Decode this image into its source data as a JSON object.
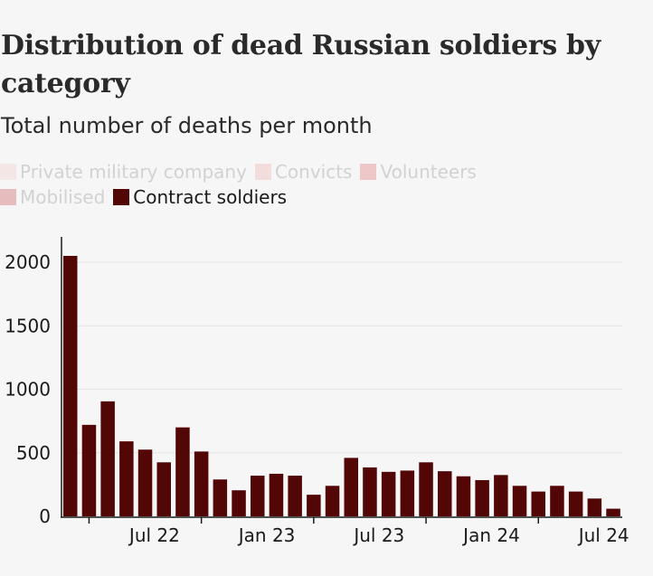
{
  "title": "Distribution of dead Russian soldiers by category",
  "subtitle": "Total number of deaths per month",
  "legend": [
    {
      "label": "Private military company",
      "color": "#f5e6e6",
      "active": false
    },
    {
      "label": "Convicts",
      "color": "#f2dcdc",
      "active": false
    },
    {
      "label": "Volunteers",
      "color": "#eec8c8",
      "active": false
    },
    {
      "label": "Mobilised",
      "color": "#e6bcbc",
      "active": false
    },
    {
      "label": "Contract soldiers",
      "color": "#520606",
      "active": true
    }
  ],
  "chart_data": {
    "type": "bar",
    "title": "Distribution of dead Russian soldiers by category",
    "subtitle": "Total number of deaths per month",
    "x_ticks": [
      "Jul 22",
      "Jan 23",
      "Jul 23",
      "Jan 24",
      "Jul 24"
    ],
    "y_ticks": [
      0,
      500,
      1000,
      1500,
      2000
    ],
    "ylim": [
      0,
      2200
    ],
    "grid": true,
    "legend_position": "top-left",
    "series": [
      {
        "name": "Contract soldiers",
        "color": "#520606",
        "values": [
          2050,
          720,
          905,
          590,
          525,
          425,
          700,
          510,
          290,
          205,
          320,
          335,
          320,
          170,
          240,
          460,
          385,
          350,
          360,
          425,
          355,
          315,
          285,
          325,
          240,
          195,
          240,
          195,
          140,
          60
        ]
      }
    ]
  }
}
